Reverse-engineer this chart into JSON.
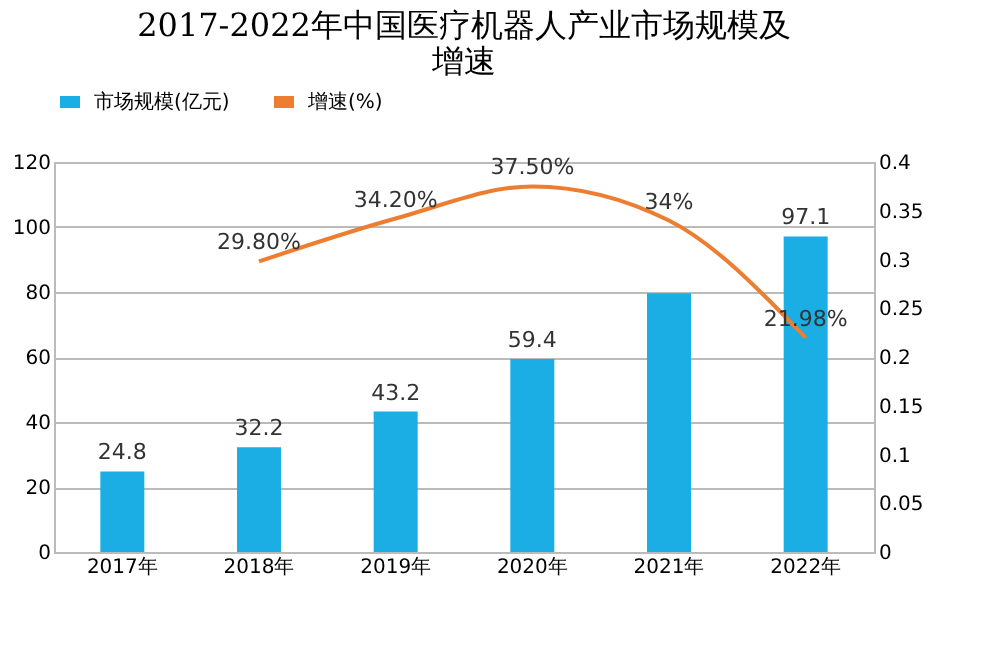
{
  "chart_data": {
    "type": "bar",
    "title": [
      "2017-2022年中国医疗机器人产业市场规模及",
      "增速"
    ],
    "categories": [
      "2017年",
      "2018年",
      "2019年",
      "2020年",
      "2021年",
      "2022年"
    ],
    "series": [
      {
        "name": "市场规模(亿元)",
        "color": "#1aaee5",
        "values": [
          24.8,
          32.2,
          43.2,
          59.4,
          79.6,
          97.1
        ],
        "value_labels": [
          "24.8",
          "32.2",
          "43.2",
          "59.4",
          null,
          "97.1"
        ]
      },
      {
        "name": "增速(%)",
        "type": "line",
        "axis": "y2",
        "color": "#ed7d31",
        "values": [
          null,
          0.298,
          0.342,
          0.375,
          0.34,
          0.2198
        ],
        "value_labels": [
          null,
          "29.80%",
          "34.20%",
          "37.50%",
          "34%",
          "21.98%"
        ]
      }
    ],
    "ylim": [
      0,
      120
    ],
    "yticks": [
      0,
      20,
      40,
      60,
      80,
      100,
      120
    ],
    "y2lim": [
      0,
      0.4
    ],
    "y2ticks": [
      0,
      0.05,
      0.1,
      0.15,
      0.2,
      0.25,
      0.3,
      0.35,
      0.4
    ],
    "grid": "y",
    "legend": "top"
  }
}
